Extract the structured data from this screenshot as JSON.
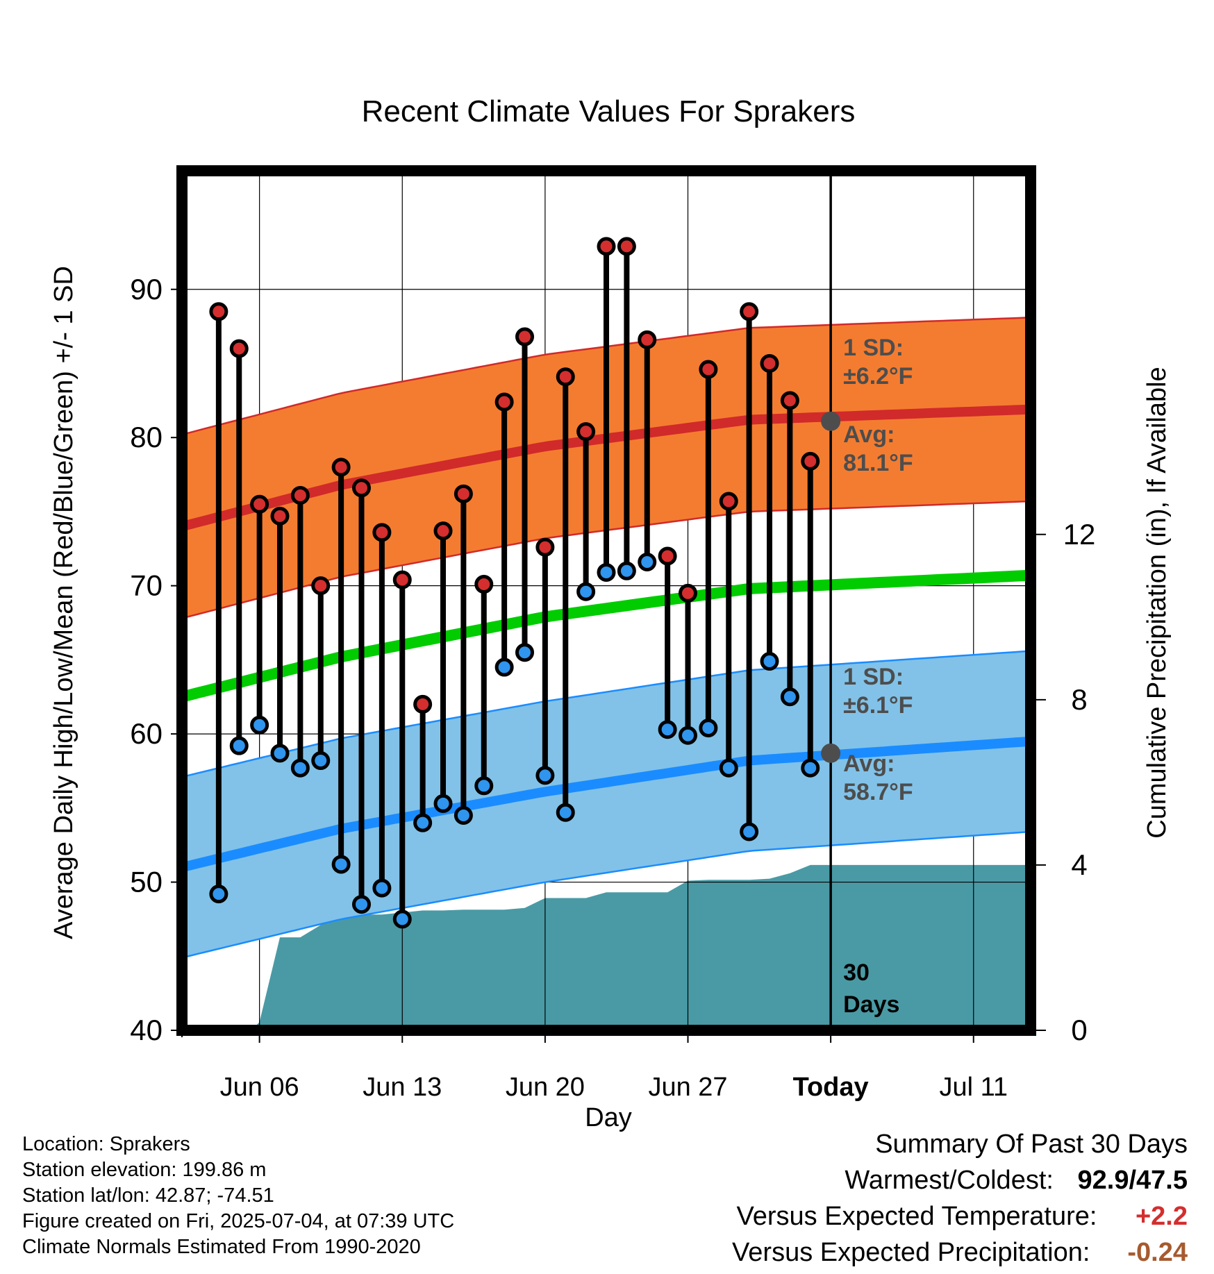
{
  "chart_data": {
    "type": "line",
    "title": "Recent Climate Values For Sprakers",
    "xlabel": "Day",
    "ylabel": "Average Daily High/Low/Mean (Red/Blue/Green) +/- 1 SD",
    "y2label": "Cumulative Precipitation (in), If Available",
    "ylim": [
      40,
      98
    ],
    "y2lim": [
      0,
      20.8
    ],
    "xlim": [
      2.2,
      43.8
    ],
    "yticks": [
      "40",
      "50",
      "60",
      "70",
      "80",
      "90"
    ],
    "y2ticks": [
      "0",
      "4",
      "8",
      "12"
    ],
    "xticks": [
      {
        "day": 6,
        "label": "Jun 06",
        "bold": false
      },
      {
        "day": 13,
        "label": "Jun 13",
        "bold": false
      },
      {
        "day": 20,
        "label": "Jun 20",
        "bold": false
      },
      {
        "day": 27,
        "label": "Jun 27",
        "bold": false
      },
      {
        "day": 34,
        "label": "Today",
        "bold": true
      },
      {
        "day": 41,
        "label": "Jul 11",
        "bold": false
      }
    ],
    "today_day": 34,
    "days": [
      4,
      5,
      6,
      7,
      8,
      9,
      10,
      11,
      12,
      13,
      14,
      15,
      16,
      17,
      18,
      19,
      20,
      21,
      22,
      23,
      24,
      25,
      26,
      27,
      28,
      29,
      30,
      31,
      32,
      33
    ],
    "highs": [
      88.5,
      86.0,
      75.5,
      74.7,
      76.1,
      70.0,
      78.0,
      76.6,
      73.6,
      70.4,
      62.0,
      73.7,
      76.2,
      70.1,
      82.4,
      86.8,
      72.6,
      84.1,
      80.4,
      92.9,
      92.9,
      86.6,
      72.0,
      69.5,
      84.6,
      75.7,
      88.5,
      85.0,
      82.5,
      78.4
    ],
    "lows": [
      49.2,
      59.2,
      60.6,
      58.7,
      57.7,
      58.2,
      51.2,
      48.5,
      49.6,
      47.5,
      54.0,
      55.3,
      54.5,
      56.5,
      64.5,
      65.5,
      57.2,
      54.7,
      69.6,
      70.9,
      71.0,
      71.6,
      60.3,
      59.9,
      60.4,
      57.7,
      53.4,
      64.9,
      62.5,
      57.7
    ],
    "normal_high": {
      "days": [
        2.2,
        10,
        20,
        30,
        43.8
      ],
      "values": [
        74.0,
        76.8,
        79.4,
        81.2,
        81.9
      ]
    },
    "normal_low": {
      "days": [
        2.2,
        10,
        20,
        30,
        43.8
      ],
      "values": [
        51.0,
        53.6,
        56.1,
        58.2,
        59.5
      ]
    },
    "normal_mean": {
      "days": [
        2.2,
        10,
        20,
        30,
        43.8
      ],
      "values": [
        62.5,
        65.2,
        67.9,
        69.8,
        70.7
      ]
    },
    "high_sd": 6.2,
    "low_sd": 6.1,
    "precip_cumulative": {
      "days": [
        2.2,
        5.6,
        6.0,
        7.0,
        8.0,
        9.0,
        10.0,
        11.0,
        12.0,
        13.0,
        14.0,
        15.0,
        16.0,
        17.0,
        18.0,
        19.0,
        20.0,
        21.0,
        22.0,
        23.0,
        24.0,
        25.0,
        26.0,
        27.0,
        28.0,
        29.0,
        30.0,
        31.0,
        32.0,
        33.0,
        34.0,
        43.8
      ],
      "values": [
        0,
        0,
        0.2,
        2.25,
        2.25,
        2.55,
        2.8,
        2.8,
        2.8,
        2.85,
        2.9,
        2.9,
        2.92,
        2.92,
        2.92,
        2.96,
        3.2,
        3.2,
        3.2,
        3.34,
        3.34,
        3.34,
        3.34,
        3.62,
        3.64,
        3.64,
        3.64,
        3.67,
        3.8,
        4.0,
        4.0,
        4.0
      ]
    },
    "annotations": {
      "high_sd_line1": "1 SD:",
      "high_sd_line2": "±6.2°F",
      "high_avg_line1": "Avg:",
      "high_avg_line2": "81.1°F",
      "low_sd_line1": "1 SD:",
      "low_sd_line2": "±6.1°F",
      "low_avg_line1": "Avg:",
      "low_avg_line2": "58.7°F",
      "days_line1": "30",
      "days_line2": "Days"
    },
    "today_avg_high": 81.1,
    "today_avg_low": 58.7,
    "colors": {
      "high_band": "#f47c30",
      "high_line": "#d02a2a",
      "low_band": "#82c2e8",
      "low_line": "#1a8cff",
      "mean_line": "#00cc00",
      "precip": "#4a9aa5",
      "high_dot": "#d42e2e",
      "low_dot": "#2f95ee",
      "annotation": "#4d4d4d"
    },
    "grid": true
  },
  "meta": {
    "location": "Location: Sprakers",
    "elevation": "Station elevation: 199.86 m",
    "latlon": "Station lat/lon: 42.87; -74.51",
    "created": "Figure created on Fri, 2025-07-04, at 07:39 UTC",
    "normals": "Climate Normals Estimated From 1990-2020"
  },
  "summary": {
    "title": "Summary Of Past 30 Days",
    "warmest_label": "Warmest/Coldest:",
    "warmest_value": "92.9/47.5",
    "temp_label": "Versus Expected Temperature:",
    "temp_value": "+2.2",
    "temp_color": "#d42e2e",
    "precip_label": "Versus Expected Precipitation:",
    "precip_value": "-0.24",
    "precip_color": "#a65a2e"
  }
}
